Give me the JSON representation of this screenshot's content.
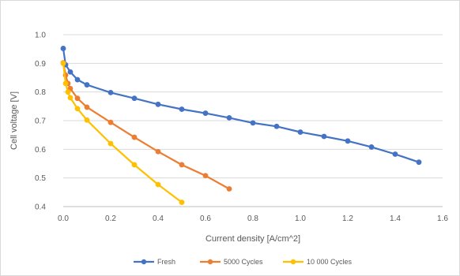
{
  "chart_data": {
    "type": "line",
    "xlabel": "Current density [A/cm^2]",
    "ylabel": "Cell voltage [V]",
    "xlim": [
      0,
      1.6
    ],
    "ylim": [
      0.4,
      1.0
    ],
    "xticks": [
      "0.0",
      "0.2",
      "0.4",
      "0.6",
      "0.8",
      "1.0",
      "1.2",
      "1.4",
      "1.6"
    ],
    "yticks": [
      "0.4",
      "0.5",
      "0.6",
      "0.7",
      "0.8",
      "0.9",
      "1.0"
    ],
    "grid": "horizontal",
    "legend_position": "bottom",
    "series": [
      {
        "name": "Fresh",
        "color": "#4472c4",
        "x": [
          0,
          0.01,
          0.03,
          0.06,
          0.1,
          0.2,
          0.3,
          0.4,
          0.5,
          0.6,
          0.7,
          0.8,
          0.9,
          1.0,
          1.1,
          1.2,
          1.3,
          1.4,
          1.5
        ],
        "y": [
          0.952,
          0.895,
          0.87,
          0.843,
          0.825,
          0.798,
          0.778,
          0.757,
          0.74,
          0.726,
          0.71,
          0.692,
          0.68,
          0.66,
          0.645,
          0.629,
          0.608,
          0.583,
          0.555
        ]
      },
      {
        "name": "5000 Cycles",
        "color": "#ed7d31",
        "x": [
          0,
          0.01,
          0.02,
          0.03,
          0.06,
          0.1,
          0.2,
          0.3,
          0.4,
          0.5,
          0.6,
          0.7
        ],
        "y": [
          0.902,
          0.859,
          0.83,
          0.812,
          0.778,
          0.747,
          0.694,
          0.642,
          0.592,
          0.546,
          0.508,
          0.462
        ]
      },
      {
        "name": "10 000 Cycles",
        "color": "#ffc000",
        "x": [
          0,
          0.01,
          0.02,
          0.03,
          0.06,
          0.1,
          0.2,
          0.3,
          0.4,
          0.5
        ],
        "y": [
          0.9,
          0.83,
          0.8,
          0.78,
          0.742,
          0.702,
          0.62,
          0.546,
          0.477,
          0.415
        ]
      }
    ]
  }
}
